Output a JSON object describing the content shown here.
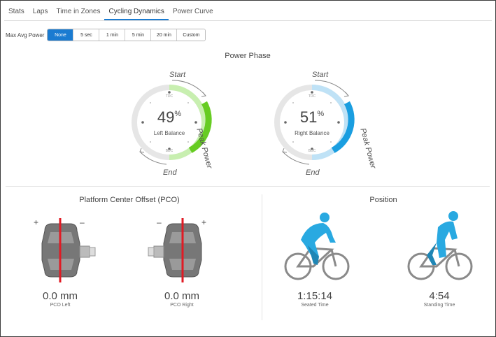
{
  "tabs": [
    "Stats",
    "Laps",
    "Time in Zones",
    "Cycling Dynamics",
    "Power Curve"
  ],
  "active_tab": "Cycling Dynamics",
  "map": {
    "label": "Max Avg Power",
    "options": [
      "None",
      "5 sec",
      "1 min",
      "5 min",
      "20 min",
      "Custom"
    ],
    "selected": "None"
  },
  "power_phase": {
    "title": "Power Phase",
    "left": {
      "percent": "49",
      "percent_sign": "%",
      "label": "Left Balance",
      "start": "Start",
      "end": "End",
      "peak": "Peak Power",
      "tdc": "TDC",
      "bdc": "BDC",
      "color": "#66cc22",
      "light_color": "#c8efb0"
    },
    "right": {
      "percent": "51",
      "percent_sign": "%",
      "label": "Right Balance",
      "start": "Start",
      "end": "End",
      "peak": "Peak Power",
      "tdc": "TDC",
      "bdc": "BDC",
      "color": "#1a9ee0",
      "light_color": "#bfe2f6"
    }
  },
  "pco": {
    "title": "Platform Center Offset (PCO)",
    "left": {
      "value": "0.0 mm",
      "label": "PCO Left",
      "plus": "+",
      "minus": "–"
    },
    "right": {
      "value": "0.0 mm",
      "label": "PCO Right",
      "plus": "+",
      "minus": "–"
    }
  },
  "position": {
    "title": "Position",
    "seated": {
      "value": "1:15:14",
      "label": "Seated Time"
    },
    "standing": {
      "value": "4:54",
      "label": "Standing Time"
    }
  },
  "colors": {
    "accent": "#1a7bd1",
    "rider": "#29a9e1",
    "bike": "#8a8a8a",
    "pco_line": "#e01b24"
  }
}
